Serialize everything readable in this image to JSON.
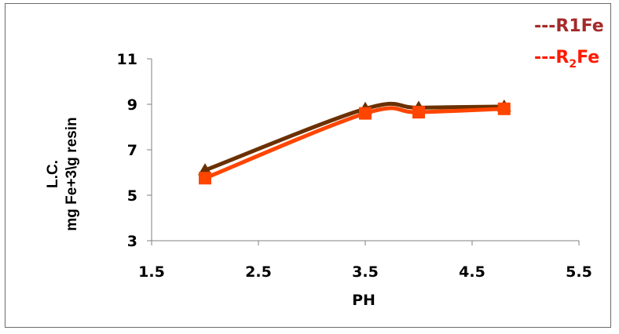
{
  "chart_data": {
    "type": "line",
    "title": "",
    "xlabel": "PH",
    "ylabel_line1": "L.C.",
    "ylabel_line2": "mg Fe+3\\g resin",
    "xlim": [
      1.5,
      5.5
    ],
    "ylim": [
      3,
      11
    ],
    "x_ticks": [
      "1.5",
      "2.5",
      "3.5",
      "4.5",
      "5.5"
    ],
    "y_ticks": [
      "3",
      "5",
      "7",
      "9",
      "11"
    ],
    "grid": false,
    "legend_position": "top-right",
    "series": [
      {
        "name": "R1Fe",
        "legend_label": "---R1Fe",
        "color": "#6b3000",
        "legend_color": "#a52a2a",
        "marker": "triangle",
        "x": [
          2,
          3.5,
          4,
          4.8
        ],
        "y": [
          6.1,
          8.8,
          8.85,
          8.9
        ]
      },
      {
        "name": "R2Fe",
        "legend_prefix": "---R",
        "legend_sub": "2",
        "legend_suffix": "Fe",
        "color": "#ff4500",
        "legend_color": "#ff1a00",
        "marker": "square",
        "x": [
          2,
          3.5,
          4,
          4.8
        ],
        "y": [
          5.75,
          8.6,
          8.65,
          8.8
        ]
      }
    ]
  }
}
